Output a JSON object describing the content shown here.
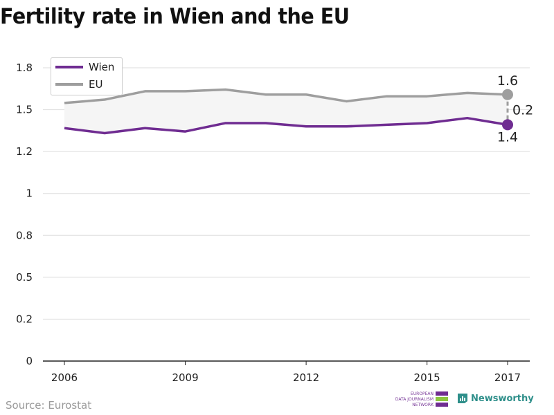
{
  "title": "Fertility rate in Wien and the EU",
  "source": "Source: Eurostat",
  "logos": {
    "edjnet_lines": [
      "EUROPEAN",
      "DATA JOURNALISM",
      "NETWORK"
    ],
    "newsworthy": "Newsworthy"
  },
  "colors": {
    "wien": "#6f2c91",
    "eu": "#9e9e9e",
    "grid": "#dddddd",
    "band": "#f5f5f5",
    "edjnet_purple": "#6f2c91",
    "edjnet_green": "#8cc63f",
    "newsworthy_teal": "#2e8f8a"
  },
  "chart_data": {
    "type": "line",
    "x": [
      2006,
      2007,
      2008,
      2009,
      2010,
      2011,
      2012,
      2013,
      2014,
      2015,
      2016,
      2017
    ],
    "series": [
      {
        "name": "Wien",
        "values": [
          1.39,
          1.36,
          1.39,
          1.37,
          1.42,
          1.42,
          1.4,
          1.4,
          1.41,
          1.42,
          1.45,
          1.41
        ]
      },
      {
        "name": "EU",
        "values": [
          1.54,
          1.56,
          1.61,
          1.61,
          1.62,
          1.59,
          1.59,
          1.55,
          1.58,
          1.58,
          1.6,
          1.59
        ]
      }
    ],
    "ylim": [
      0,
      1.75
    ],
    "yticks": [
      0,
      0.25,
      0.5,
      0.75,
      1,
      1.25,
      1.5,
      1.75
    ],
    "ytick_labels": [
      "0",
      "0.2",
      "0.5",
      "0.8",
      "1",
      "1.2",
      "1.5",
      "1.8"
    ],
    "xticks": [
      2006,
      2009,
      2012,
      2015,
      2017
    ],
    "xtick_labels": [
      "2006",
      "2009",
      "2012",
      "2015",
      "2017"
    ],
    "legend": {
      "position": "top-left",
      "entries": [
        "Wien",
        "EU"
      ]
    },
    "grid": true,
    "annotations": {
      "eu_last": "1.6",
      "wien_last": "1.4",
      "gap": "0.2"
    }
  }
}
